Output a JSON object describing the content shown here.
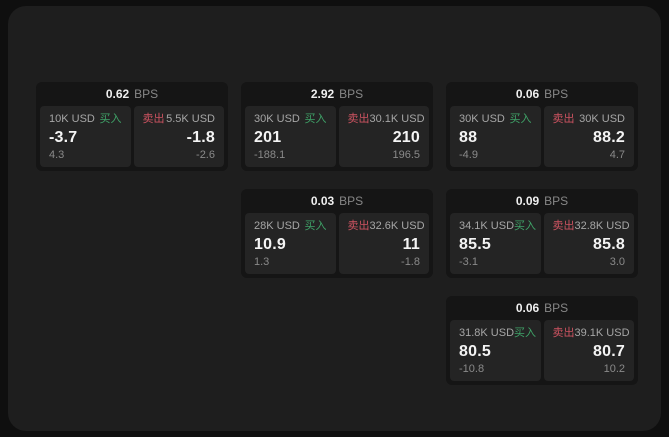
{
  "labels": {
    "bps_unit": "BPS",
    "buy": "买入",
    "sell": "卖出"
  },
  "colors": {
    "outer_background": "#0f0f0f",
    "window_background": "#1e1e1e",
    "card_background": "#151515",
    "panel_background": "#242424",
    "buy_accent": "#3fa368",
    "sell_accent": "#cd5361",
    "primary_text": "#f4f4f4",
    "secondary_text": "#a6a6a6",
    "muted_text": "#8a8a8a"
  },
  "cards": [
    {
      "bps": "0.62",
      "buy": {
        "notional": "10K USD",
        "price": "-3.7",
        "change": "4.3"
      },
      "sell": {
        "notional": "5.5K USD",
        "price": "-1.8",
        "change": "-2.6"
      }
    },
    {
      "bps": "2.92",
      "buy": {
        "notional": "30K USD",
        "price": "201",
        "change": "-188.1"
      },
      "sell": {
        "notional": "30.1K USD",
        "price": "210",
        "change": "196.5"
      }
    },
    {
      "bps": "0.06",
      "buy": {
        "notional": "30K USD",
        "price": "88",
        "change": "-4.9"
      },
      "sell": {
        "notional": "30K USD",
        "price": "88.2",
        "change": "4.7"
      }
    },
    {
      "bps": "0.03",
      "buy": {
        "notional": "28K USD",
        "price": "10.9",
        "change": "1.3"
      },
      "sell": {
        "notional": "32.6K USD",
        "price": "11",
        "change": "-1.8"
      }
    },
    {
      "bps": "0.09",
      "buy": {
        "notional": "34.1K USD",
        "price": "85.5",
        "change": "-3.1"
      },
      "sell": {
        "notional": "32.8K USD",
        "price": "85.8",
        "change": "3.0"
      }
    },
    {
      "bps": "0.06",
      "buy": {
        "notional": "31.8K USD",
        "price": "80.5",
        "change": "-10.8"
      },
      "sell": {
        "notional": "39.1K USD",
        "price": "80.7",
        "change": "10.2"
      }
    }
  ]
}
